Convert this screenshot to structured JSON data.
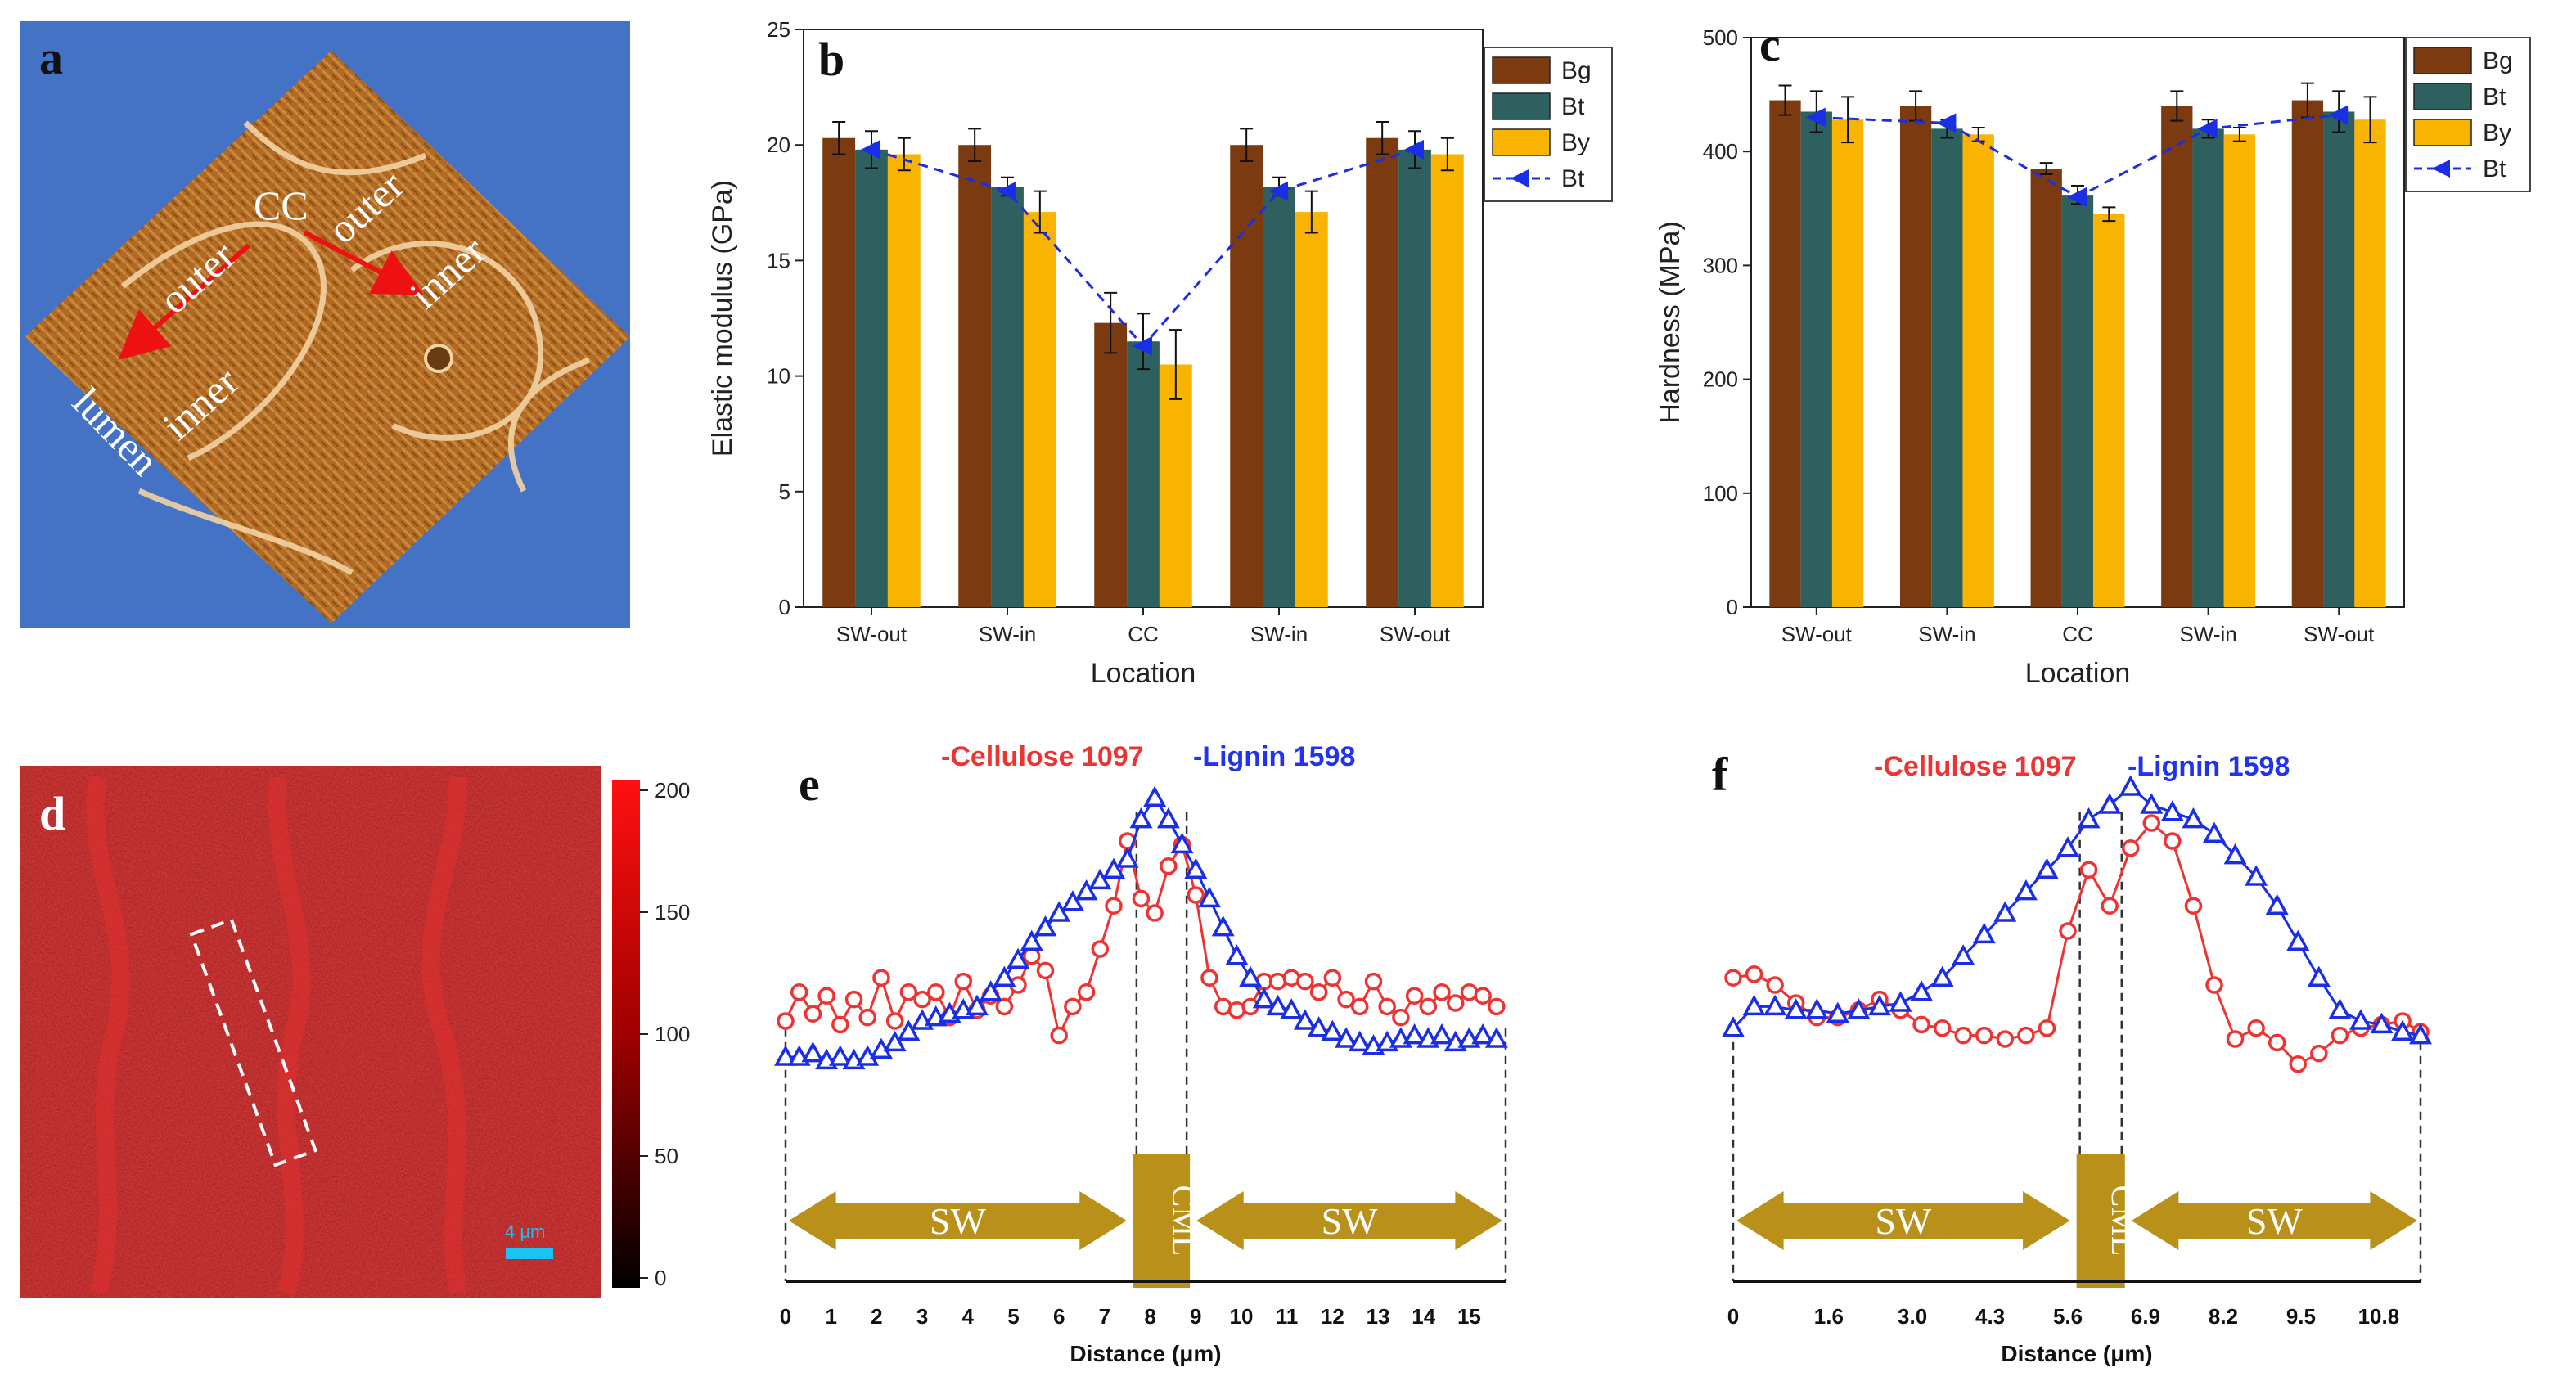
{
  "panels": {
    "a": {
      "letter": "a",
      "labels": {
        "cc": "CC",
        "outer_left": "outer",
        "inner_left": "inner",
        "lumen": "lumen",
        "outer_right": "outer",
        "inner_right": "inner"
      },
      "colors": {
        "background": "#4472c4",
        "texture": "#b26a22",
        "arrow": "#ee1111"
      }
    },
    "d": {
      "letter": "d",
      "scale_bar": "4 μm",
      "colorbar_ticks": [
        "200",
        "150",
        "100",
        "50",
        "0"
      ],
      "colors": {
        "background": "#8a0c0c",
        "scale_bar": "#19c3f5"
      }
    }
  },
  "chart_data": [
    {
      "id": "b",
      "letter": "b",
      "type": "bar",
      "title": "",
      "xlabel": "Location",
      "ylabel": "Elastic modulus (GPa)",
      "ylim": [
        0,
        25
      ],
      "yticks": [
        "0",
        "5",
        "10",
        "15",
        "20",
        "25"
      ],
      "categories": [
        "SW-out",
        "SW-in",
        "CC",
        "SW-in",
        "SW-out"
      ],
      "series": [
        {
          "name": "Bg",
          "color": "#7b3a0f",
          "values": [
            20.3,
            20.0,
            12.3,
            20.0,
            20.3
          ],
          "errors": [
            0.7,
            0.7,
            1.3,
            0.7,
            0.7
          ]
        },
        {
          "name": "Bt",
          "color": "#2f6060",
          "values": [
            19.8,
            18.2,
            11.5,
            18.2,
            19.8
          ],
          "errors": [
            0.8,
            0.4,
            1.2,
            0.4,
            0.8
          ]
        },
        {
          "name": "By",
          "color": "#f8b400",
          "values": [
            19.6,
            17.1,
            10.5,
            17.1,
            19.6
          ],
          "errors": [
            0.7,
            0.9,
            1.5,
            0.9,
            0.7
          ]
        }
      ],
      "line": {
        "name": "Bt",
        "style": "dashed",
        "marker": "triangle-left",
        "color": "#1a2ee6",
        "values": [
          19.8,
          18.0,
          11.3,
          18.0,
          19.8
        ]
      },
      "legend": [
        "Bg",
        "Bt",
        "By",
        "Bt"
      ],
      "legend_position": "top-right"
    },
    {
      "id": "c",
      "letter": "c",
      "type": "bar",
      "title": "",
      "xlabel": "Location",
      "ylabel": "Hardness (MPa)",
      "ylim": [
        0,
        500
      ],
      "yticks": [
        "0",
        "100",
        "200",
        "300",
        "400",
        "500"
      ],
      "categories": [
        "SW-out",
        "SW-in",
        "CC",
        "SW-in",
        "SW-out"
      ],
      "series": [
        {
          "name": "Bg",
          "color": "#7b3a0f",
          "values": [
            445,
            440,
            385,
            440,
            445
          ],
          "errors": [
            13,
            13,
            5,
            13,
            15
          ]
        },
        {
          "name": "Bt",
          "color": "#2f6060",
          "values": [
            435,
            420,
            362,
            420,
            435
          ],
          "errors": [
            18,
            8,
            8,
            8,
            18
          ]
        },
        {
          "name": "By",
          "color": "#f8b400",
          "values": [
            428,
            415,
            345,
            415,
            428
          ],
          "errors": [
            20,
            6,
            6,
            6,
            20
          ]
        }
      ],
      "line": {
        "name": "Bt",
        "style": "dashed",
        "marker": "triangle-left",
        "color": "#1a2ee6",
        "values": [
          430,
          425,
          360,
          420,
          432
        ]
      },
      "legend": [
        "Bg",
        "Bt",
        "By",
        "Bt"
      ],
      "legend_position": "top-right"
    },
    {
      "id": "e",
      "letter": "e",
      "type": "line",
      "title_cellulose": "-Cellulose 1097",
      "title_lignin": "-Lignin 1598",
      "xlabel": "Distance (μm)",
      "xticks": [
        "0",
        "1",
        "2",
        "3",
        "4",
        "5",
        "6",
        "7",
        "8",
        "9",
        "10",
        "11",
        "12",
        "13",
        "14",
        "15"
      ],
      "xlim": [
        0,
        15.8
      ],
      "ylim": [
        0,
        1
      ],
      "cml_range": [
        7.7,
        8.8
      ],
      "region_labels": {
        "left": "SW",
        "middle": "CML",
        "right": "SW"
      },
      "series": [
        {
          "name": "Cellulose 1097",
          "color": "#ee3333",
          "marker": "circle",
          "x": [
            0.0,
            0.3,
            0.6,
            0.9,
            1.2,
            1.5,
            1.8,
            2.1,
            2.4,
            2.7,
            3.0,
            3.3,
            3.6,
            3.9,
            4.2,
            4.5,
            4.8,
            5.1,
            5.4,
            5.7,
            6.0,
            6.3,
            6.6,
            6.9,
            7.2,
            7.5,
            7.8,
            8.1,
            8.4,
            8.7,
            9.0,
            9.3,
            9.6,
            9.9,
            10.2,
            10.5,
            10.8,
            11.1,
            11.4,
            11.7,
            12.0,
            12.3,
            12.6,
            12.9,
            13.2,
            13.5,
            13.8,
            14.1,
            14.4,
            14.7,
            15.0,
            15.3,
            15.6
          ],
          "y": [
            0.3,
            0.38,
            0.32,
            0.37,
            0.29,
            0.36,
            0.31,
            0.42,
            0.3,
            0.38,
            0.36,
            0.38,
            0.31,
            0.41,
            0.33,
            0.37,
            0.34,
            0.4,
            0.48,
            0.44,
            0.26,
            0.34,
            0.38,
            0.5,
            0.62,
            0.8,
            0.64,
            0.6,
            0.73,
            0.79,
            0.65,
            0.42,
            0.34,
            0.33,
            0.34,
            0.41,
            0.41,
            0.42,
            0.41,
            0.38,
            0.42,
            0.36,
            0.34,
            0.41,
            0.34,
            0.31,
            0.37,
            0.34,
            0.38,
            0.35,
            0.38,
            0.37,
            0.34
          ]
        },
        {
          "name": "Lignin 1598",
          "color": "#1a2ee6",
          "marker": "triangle",
          "x": [
            0.0,
            0.3,
            0.6,
            0.9,
            1.2,
            1.5,
            1.8,
            2.1,
            2.4,
            2.7,
            3.0,
            3.3,
            3.6,
            3.9,
            4.2,
            4.5,
            4.8,
            5.1,
            5.4,
            5.7,
            6.0,
            6.3,
            6.6,
            6.9,
            7.2,
            7.5,
            7.8,
            8.1,
            8.4,
            8.7,
            9.0,
            9.3,
            9.6,
            9.9,
            10.2,
            10.5,
            10.8,
            11.1,
            11.4,
            11.7,
            12.0,
            12.3,
            12.6,
            12.9,
            13.2,
            13.5,
            13.8,
            14.1,
            14.4,
            14.7,
            15.0,
            15.3,
            15.6
          ],
          "y": [
            0.2,
            0.2,
            0.21,
            0.19,
            0.2,
            0.19,
            0.2,
            0.22,
            0.24,
            0.27,
            0.3,
            0.31,
            0.32,
            0.33,
            0.34,
            0.38,
            0.42,
            0.47,
            0.52,
            0.56,
            0.6,
            0.63,
            0.66,
            0.69,
            0.72,
            0.75,
            0.86,
            0.92,
            0.86,
            0.79,
            0.72,
            0.64,
            0.56,
            0.48,
            0.42,
            0.36,
            0.34,
            0.33,
            0.3,
            0.28,
            0.27,
            0.25,
            0.24,
            0.23,
            0.24,
            0.25,
            0.26,
            0.25,
            0.26,
            0.24,
            0.25,
            0.26,
            0.25
          ]
        }
      ]
    },
    {
      "id": "f",
      "letter": "f",
      "type": "line",
      "title_cellulose": "-Cellulose 1097",
      "title_lignin": "-Lignin 1598",
      "xlabel": "Distance (μm)",
      "xticks": [
        "0",
        "1.6",
        "3.0",
        "4.3",
        "5.6",
        "6.9",
        "8.2",
        "9.5",
        "10.8"
      ],
      "xtick_values": [
        0,
        1.6,
        3.0,
        4.3,
        5.6,
        6.9,
        8.2,
        9.5,
        10.8
      ],
      "xlim": [
        0,
        11.5
      ],
      "ylim": [
        0,
        1
      ],
      "cml_range": [
        5.8,
        6.5
      ],
      "region_labels": {
        "left": "SW",
        "middle": "CML",
        "right": "SW"
      },
      "series": [
        {
          "name": "Cellulose 1097",
          "color": "#ee3333",
          "marker": "circle",
          "x": [
            0.0,
            0.35,
            0.7,
            1.05,
            1.4,
            1.75,
            2.1,
            2.45,
            2.8,
            3.15,
            3.5,
            3.85,
            4.2,
            4.55,
            4.9,
            5.25,
            5.6,
            5.95,
            6.3,
            6.65,
            7.0,
            7.35,
            7.7,
            8.05,
            8.4,
            8.75,
            9.1,
            9.45,
            9.8,
            10.15,
            10.5,
            10.85,
            11.2,
            11.5
          ],
          "y": [
            0.42,
            0.43,
            0.4,
            0.35,
            0.31,
            0.31,
            0.33,
            0.36,
            0.33,
            0.29,
            0.28,
            0.26,
            0.26,
            0.25,
            0.26,
            0.28,
            0.55,
            0.72,
            0.62,
            0.78,
            0.85,
            0.8,
            0.62,
            0.4,
            0.25,
            0.28,
            0.24,
            0.18,
            0.21,
            0.26,
            0.28,
            0.29,
            0.3,
            0.27
          ]
        },
        {
          "name": "Lignin 1598",
          "color": "#1a2ee6",
          "marker": "triangle",
          "x": [
            0.0,
            0.35,
            0.7,
            1.05,
            1.4,
            1.75,
            2.1,
            2.45,
            2.8,
            3.15,
            3.5,
            3.85,
            4.2,
            4.55,
            4.9,
            5.25,
            5.6,
            5.95,
            6.3,
            6.65,
            7.0,
            7.35,
            7.7,
            8.05,
            8.4,
            8.75,
            9.1,
            9.45,
            9.8,
            10.15,
            10.5,
            10.85,
            11.2,
            11.5
          ],
          "y": [
            0.28,
            0.34,
            0.34,
            0.33,
            0.33,
            0.32,
            0.33,
            0.34,
            0.35,
            0.38,
            0.42,
            0.48,
            0.54,
            0.6,
            0.66,
            0.72,
            0.78,
            0.86,
            0.9,
            0.95,
            0.9,
            0.88,
            0.86,
            0.82,
            0.76,
            0.7,
            0.62,
            0.52,
            0.42,
            0.33,
            0.3,
            0.29,
            0.27,
            0.26
          ]
        }
      ]
    }
  ]
}
